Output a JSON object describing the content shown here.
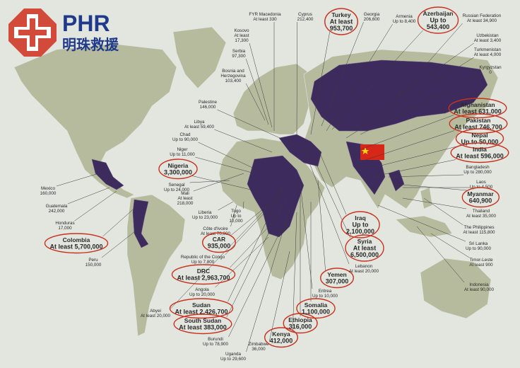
{
  "logo": {
    "title": "PHR",
    "subtitle": "明珠救援"
  },
  "labels": [
    {
      "lines": [
        "FYR Macedonia",
        "At least 330"
      ],
      "circled": false
    },
    {
      "lines": [
        "Kosovo",
        "At least",
        "17,300"
      ],
      "circled": false
    },
    {
      "lines": [
        "Serbia",
        "97,300"
      ],
      "circled": false
    },
    {
      "lines": [
        "Bosnia and",
        "Herzegovina",
        "103,400"
      ],
      "circled": false
    },
    {
      "lines": [
        "Cyprus",
        "212,400"
      ],
      "circled": false
    },
    {
      "lines": [
        "Turkey",
        "At least",
        "953,700"
      ],
      "circled": true
    },
    {
      "lines": [
        "Georgia",
        "206,600"
      ],
      "circled": false
    },
    {
      "lines": [
        "Armenia",
        "Up to 8,400"
      ],
      "circled": false
    },
    {
      "lines": [
        "Azerbaijan",
        "Up to",
        "543,400"
      ],
      "circled": true
    },
    {
      "lines": [
        "Russian Federation",
        "At least 34,900"
      ],
      "circled": false
    },
    {
      "lines": [
        "Uzbekistan",
        "At least 3,400"
      ],
      "circled": false
    },
    {
      "lines": [
        "Turkmenistan",
        "At least 4,000"
      ],
      "circled": false
    },
    {
      "lines": [
        "Kyrgyzstan",
        "0"
      ],
      "circled": false
    },
    {
      "lines": [
        "Palestine",
        "146,000"
      ],
      "circled": false
    },
    {
      "lines": [
        "Libya",
        "At least 59,400"
      ],
      "circled": false
    },
    {
      "lines": [
        "Chad",
        "Up to 90,000"
      ],
      "circled": false
    },
    {
      "lines": [
        "Niger",
        "Up to 11,000"
      ],
      "circled": false
    },
    {
      "lines": [
        "Nigeria",
        "3,300,000"
      ],
      "circled": true
    },
    {
      "lines": [
        "Senegal",
        "Up to 24,000"
      ],
      "circled": false
    },
    {
      "lines": [
        "Mali",
        "At least",
        "218,000"
      ],
      "circled": false
    },
    {
      "lines": [
        "Liberia",
        "Up to 23,000"
      ],
      "circled": false
    },
    {
      "lines": [
        "Togo",
        "Up to",
        "10,000"
      ],
      "circled": false
    },
    {
      "lines": [
        "Côte d'Ivoire",
        "At least 70,000"
      ],
      "circled": false
    },
    {
      "lines": [
        "CAR",
        "935,000"
      ],
      "circled": true
    },
    {
      "lines": [
        "Republic of the Congo",
        "Up to 7,800"
      ],
      "circled": false
    },
    {
      "lines": [
        "DRC",
        "At least 2,963,700"
      ],
      "circled": true
    },
    {
      "lines": [
        "Angola",
        "Up to 20,000"
      ],
      "circled": false
    },
    {
      "lines": [
        "Sudan",
        "At least 2,426,700"
      ],
      "circled": true
    },
    {
      "lines": [
        "South Sudan",
        "At least 383,000"
      ],
      "circled": true
    },
    {
      "lines": [
        "Abyei",
        "At least 20,000"
      ],
      "circled": false
    },
    {
      "lines": [
        "Burundi",
        "Up to 78,900"
      ],
      "circled": false
    },
    {
      "lines": [
        "Uganda",
        "Up to 29,600"
      ],
      "circled": false
    },
    {
      "lines": [
        "Zimbabwe",
        "36,000"
      ],
      "circled": false
    },
    {
      "lines": [
        "Kenya",
        "412,000"
      ],
      "circled": true
    },
    {
      "lines": [
        "Ethiopia",
        "316,000"
      ],
      "circled": true
    },
    {
      "lines": [
        "Somalia",
        "1,100,000"
      ],
      "circled": true
    },
    {
      "lines": [
        "Eritrea",
        "Up to 10,000"
      ],
      "circled": false
    },
    {
      "lines": [
        "Yemen",
        "307,000"
      ],
      "circled": true
    },
    {
      "lines": [
        "Lebanon",
        "At least 20,000"
      ],
      "circled": false
    },
    {
      "lines": [
        "Syria",
        "At least",
        "6,500,000"
      ],
      "circled": true
    },
    {
      "lines": [
        "Iraq",
        "Up to",
        "2,100,000"
      ],
      "circled": true
    },
    {
      "lines": [
        "Mexico",
        "160,000"
      ],
      "circled": false
    },
    {
      "lines": [
        "Guatemala",
        "242,000"
      ],
      "circled": false
    },
    {
      "lines": [
        "Honduras",
        "17,000"
      ],
      "circled": false
    },
    {
      "lines": [
        "Colombia",
        "At least 5,700,000"
      ],
      "circled": true
    },
    {
      "lines": [
        "Peru",
        "150,000"
      ],
      "circled": false
    },
    {
      "lines": [
        "Afghanistan",
        "At least 631,000"
      ],
      "circled": true
    },
    {
      "lines": [
        "Pakistan",
        "At least 746,700"
      ],
      "circled": true
    },
    {
      "lines": [
        "Nepal",
        "Up to 50,000"
      ],
      "circled": true
    },
    {
      "lines": [
        "India",
        "At least 596,000"
      ],
      "circled": true
    },
    {
      "lines": [
        "Bangladesh",
        "Up to 280,000"
      ],
      "circled": false
    },
    {
      "lines": [
        "Laos",
        "Up to 4,500"
      ],
      "circled": false
    },
    {
      "lines": [
        "Myanmar",
        "640,900"
      ],
      "circled": true
    },
    {
      "lines": [
        "Thailand",
        "At least 35,000"
      ],
      "circled": false
    },
    {
      "lines": [
        "The Philippines",
        "At least 115,800"
      ],
      "circled": false
    },
    {
      "lines": [
        "Sri Lanka",
        "Up to 90,000"
      ],
      "circled": false
    },
    {
      "lines": [
        "Timor-Leste",
        "At least 900"
      ],
      "circled": false
    },
    {
      "lines": [
        "Indonesia",
        "At least 90,000"
      ],
      "circled": false
    }
  ]
}
